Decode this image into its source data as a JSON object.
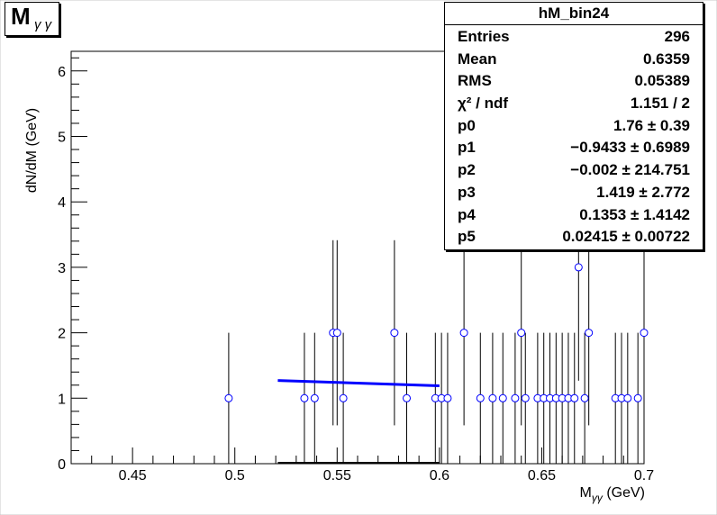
{
  "title": {
    "main": "M",
    "sub": "γ γ"
  },
  "stats": {
    "name": "hM_bin24",
    "rows": [
      {
        "key": "Entries",
        "value": "296"
      },
      {
        "key": "Mean",
        "value": "0.6359"
      },
      {
        "key": "RMS",
        "value": "0.05389"
      },
      {
        "key": "χ² / ndf",
        "value": "1.151 / 2"
      },
      {
        "key": "p0",
        "value": "1.76 ± 0.39"
      },
      {
        "key": "p1",
        "value": "−0.9433 ± 0.6989"
      },
      {
        "key": "p2",
        "value": "−0.002 ± 214.751"
      },
      {
        "key": "p3",
        "value": "1.419 ± 2.772"
      },
      {
        "key": "p4",
        "value": "0.1353 ± 1.4142"
      },
      {
        "key": "p5",
        "value": "0.02415 ± 0.00722"
      }
    ]
  },
  "colors": {
    "markers": "#0000ff",
    "fit": "#0000ff",
    "frame": "#000000"
  },
  "chart_data": {
    "type": "scatter",
    "xlabel": "M_{γγ} (GeV)",
    "ylabel": "dN/dM (GeV)",
    "xlim": [
      0.42,
      0.7
    ],
    "ylim": [
      0,
      6.3
    ],
    "x_ticks": [
      "0.45",
      "0.5",
      "0.55",
      "0.6",
      "0.65",
      "0.7"
    ],
    "x_tick_values": [
      0.45,
      0.5,
      0.55,
      0.6,
      0.65,
      0.7
    ],
    "y_ticks": [
      "0",
      "1",
      "2",
      "3",
      "4",
      "5",
      "6"
    ],
    "y_tick_values": [
      0,
      1,
      2,
      3,
      4,
      5,
      6
    ],
    "series": [
      {
        "x": [
          0.497,
          0.534,
          0.539,
          0.548,
          0.55,
          0.553,
          0.578,
          0.584,
          0.598,
          0.601,
          0.604,
          0.612,
          0.62,
          0.626,
          0.631,
          0.637,
          0.64,
          0.642,
          0.648,
          0.651,
          0.654,
          0.657,
          0.66,
          0.663,
          0.666,
          0.668,
          0.671,
          0.673,
          0.686,
          0.689,
          0.692,
          0.697,
          0.7
        ],
        "values": [
          1,
          1,
          1,
          2,
          2,
          1,
          2,
          1,
          1,
          1,
          1,
          2,
          1,
          1,
          1,
          1,
          2,
          1,
          1,
          1,
          1,
          1,
          1,
          1,
          1,
          3,
          1,
          2,
          1,
          1,
          1,
          1,
          2
        ]
      }
    ],
    "fit_line": {
      "x": [
        0.521,
        0.6
      ],
      "y": [
        1.27,
        1.19
      ]
    }
  }
}
